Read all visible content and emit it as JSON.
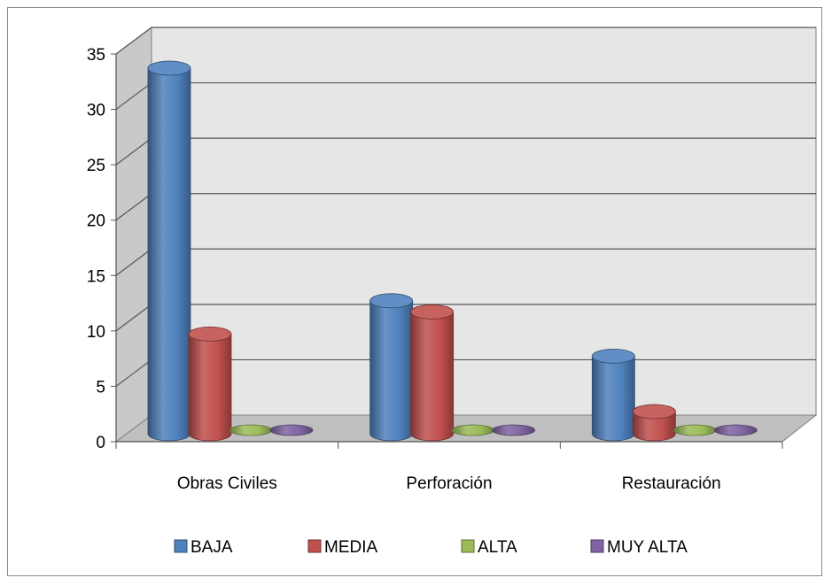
{
  "chart_data": {
    "type": "bar",
    "categories": [
      "Obras Civiles",
      "Perforación",
      "Restauración"
    ],
    "series": [
      {
        "name": "BAJA",
        "values": [
          33,
          12,
          7
        ],
        "color": "#4f81bd"
      },
      {
        "name": "MEDIA",
        "values": [
          9,
          11,
          2
        ],
        "color": "#c0504d"
      },
      {
        "name": "ALTA",
        "values": [
          0,
          0,
          0
        ],
        "color": "#9bbb59"
      },
      {
        "name": "MUY ALTA",
        "values": [
          0,
          0,
          0
        ],
        "color": "#8064a2"
      }
    ],
    "yticks": [
      "0",
      "5",
      "10",
      "15",
      "20",
      "25",
      "30",
      "35"
    ],
    "ylim": [
      0,
      35
    ],
    "grid": true,
    "legend_position": "bottom",
    "style": "3d-cylinder",
    "wall_color": "#e6e6e6",
    "floor_color": "#bfbfbf"
  }
}
